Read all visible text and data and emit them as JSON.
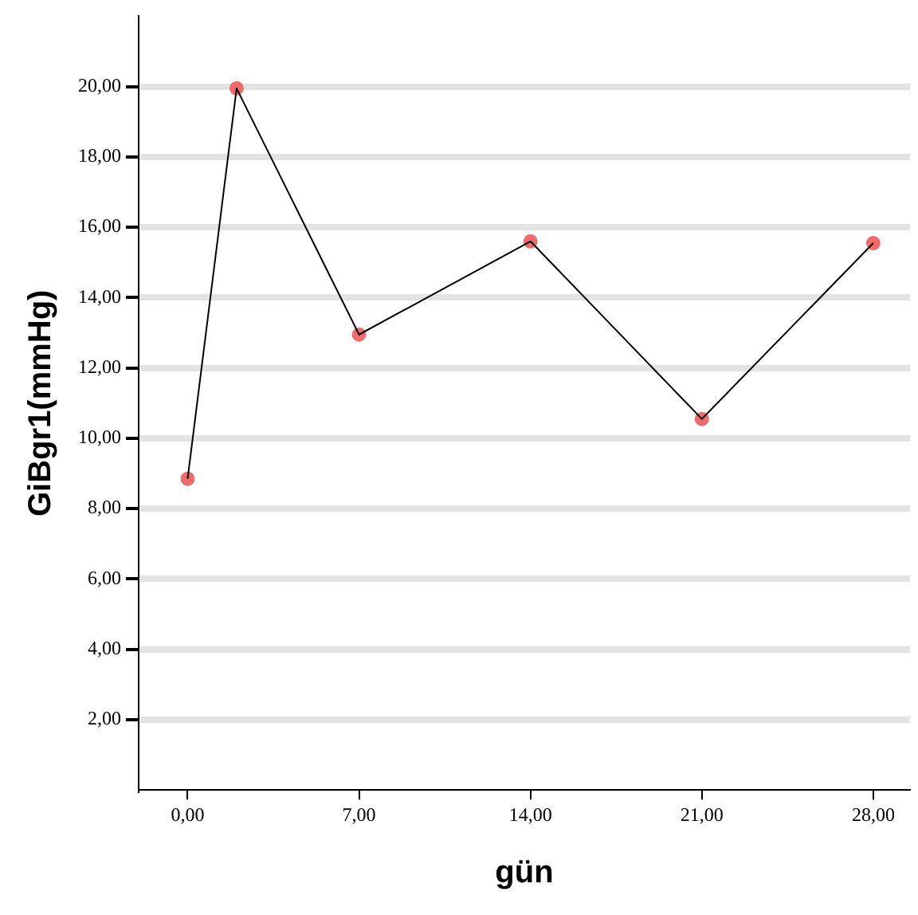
{
  "chart_data": {
    "type": "line",
    "xlabel": "gün",
    "ylabel": "GiBgr1(mmHg)",
    "x": [
      0,
      2,
      7,
      14,
      21,
      28
    ],
    "series": [
      {
        "color": "#000000",
        "marker": "none",
        "values": [
          8.85,
          19.95,
          12.95,
          15.6,
          10.55,
          15.55
        ]
      },
      {
        "type": "scatter",
        "color": "#f06c6c",
        "marker": "circle",
        "values": [
          8.85,
          19.95,
          12.95,
          15.6,
          10.55,
          15.55
        ]
      }
    ],
    "xlim": [
      -2,
      29.5
    ],
    "ylim": [
      0,
      22
    ],
    "xticks": [
      {
        "value": 0,
        "label": "0,00"
      },
      {
        "value": 7,
        "label": "7,00"
      },
      {
        "value": 14,
        "label": "14,00"
      },
      {
        "value": 21,
        "label": "21,00"
      },
      {
        "value": 28,
        "label": "28,00"
      }
    ],
    "yticks": [
      {
        "value": 2,
        "label": "2,00"
      },
      {
        "value": 4,
        "label": "4,00"
      },
      {
        "value": 6,
        "label": "6,00"
      },
      {
        "value": 8,
        "label": "8,00"
      },
      {
        "value": 10,
        "label": "10,00"
      },
      {
        "value": 12,
        "label": "12,00"
      },
      {
        "value": 14,
        "label": "14,00"
      },
      {
        "value": 16,
        "label": "16,00"
      },
      {
        "value": 18,
        "label": "18,00"
      },
      {
        "value": 20,
        "label": "20,00"
      }
    ],
    "grid": "y",
    "legend": false
  }
}
